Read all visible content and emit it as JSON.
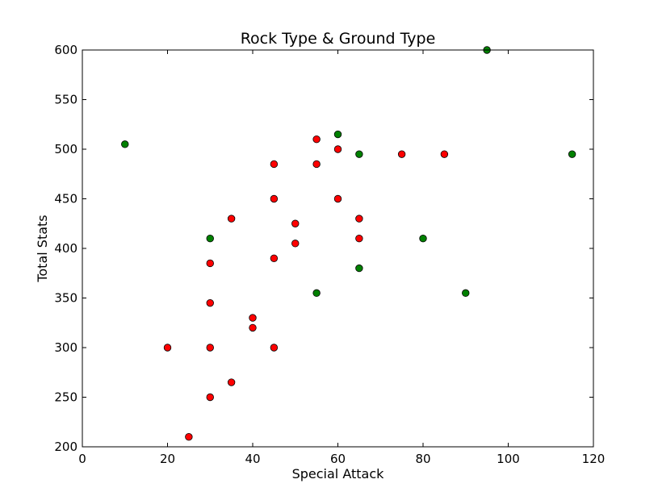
{
  "chart_data": {
    "type": "scatter",
    "title": "Rock Type & Ground Type",
    "xlabel": "Special Attack",
    "ylabel": "Total Stats",
    "xlim": [
      0,
      120
    ],
    "ylim": [
      200,
      600
    ],
    "xticks": [
      0,
      20,
      40,
      60,
      80,
      100,
      120
    ],
    "yticks": [
      200,
      250,
      300,
      350,
      400,
      450,
      500,
      550,
      600
    ],
    "grid": false,
    "series": [
      {
        "color": "#ff0000",
        "points": [
          [
            20,
            300
          ],
          [
            25,
            210
          ],
          [
            30,
            385
          ],
          [
            30,
            345
          ],
          [
            30,
            300
          ],
          [
            30,
            250
          ],
          [
            35,
            430
          ],
          [
            35,
            265
          ],
          [
            40,
            330
          ],
          [
            40,
            320
          ],
          [
            45,
            485
          ],
          [
            45,
            450
          ],
          [
            45,
            390
          ],
          [
            45,
            300
          ],
          [
            50,
            425
          ],
          [
            50,
            405
          ],
          [
            55,
            510
          ],
          [
            55,
            485
          ],
          [
            60,
            500
          ],
          [
            60,
            450
          ],
          [
            65,
            430
          ],
          [
            65,
            410
          ],
          [
            75,
            495
          ],
          [
            85,
            495
          ]
        ]
      },
      {
        "color": "#008000",
        "points": [
          [
            10,
            505
          ],
          [
            30,
            410
          ],
          [
            55,
            355
          ],
          [
            60,
            515
          ],
          [
            65,
            495
          ],
          [
            65,
            380
          ],
          [
            80,
            410
          ],
          [
            90,
            355
          ],
          [
            95,
            600
          ],
          [
            115,
            495
          ]
        ]
      }
    ]
  }
}
